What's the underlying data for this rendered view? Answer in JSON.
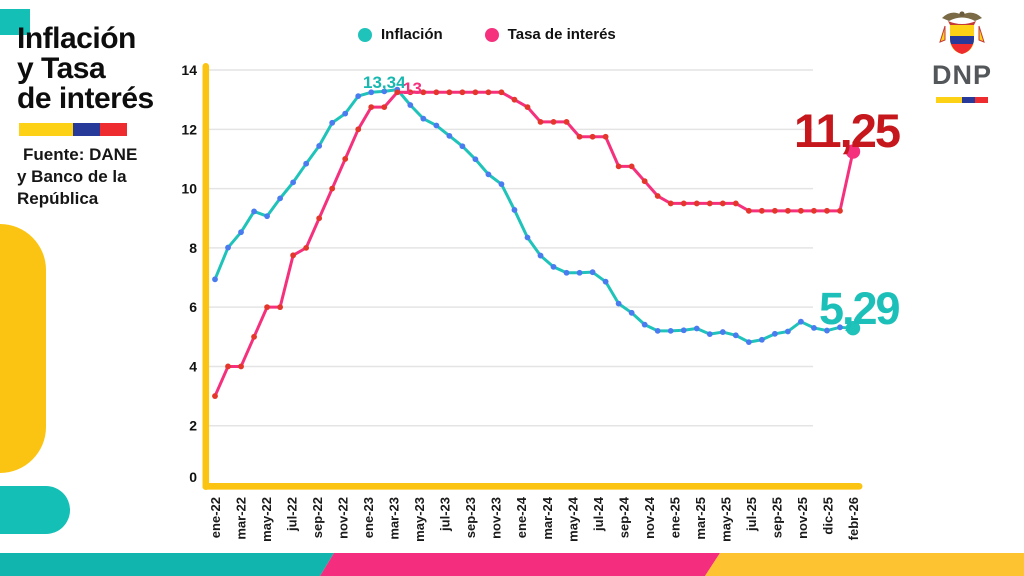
{
  "left_panel": {
    "title_lines": [
      "Inflación",
      "y Tasa",
      "de interés"
    ],
    "source_lines": [
      "Fuente: DANE",
      "y Banco de la",
      "República"
    ]
  },
  "legend": {
    "items": [
      {
        "label": "Inflación",
        "color": "#1fc3ba"
      },
      {
        "label": "Tasa de interés",
        "color": "#f5317e"
      }
    ]
  },
  "logo": {
    "text": "DNP"
  },
  "annotations": {
    "inflacion_peak": "13,34",
    "tasa_peak": "13",
    "tasa_last": "11,25",
    "inflacion_last": "5,29"
  },
  "colors": {
    "teal": "#1fc3ba",
    "pink": "#f5317e",
    "red_callout": "#c5171c",
    "axis_yellow": "#fcc412",
    "grid": "#e4e4e4",
    "tick_text": "#111111"
  },
  "chart_data": {
    "type": "line",
    "title": "Inflación y Tasa de interés",
    "xlabel": "",
    "ylabel": "",
    "ylim": [
      0,
      14
    ],
    "yticks": [
      0,
      2,
      4,
      6,
      8,
      10,
      12,
      14
    ],
    "grid": true,
    "legend_position": "top",
    "x_labels": [
      "ene-22",
      "mar-22",
      "may-22",
      "jul-22",
      "sep-22",
      "nov-22",
      "ene-23",
      "mar-23",
      "may-23",
      "jul-23",
      "sep-23",
      "nov-23",
      "ene-24",
      "mar-24",
      "may-24",
      "jul-24",
      "sep-24",
      "nov-24",
      "ene-25",
      "mar-25",
      "may-25",
      "jul-25",
      "sep-25",
      "nov-25",
      "dic-25",
      "febr-26"
    ],
    "x_start": "ene-22",
    "x_end": "febr-26",
    "frequency": "monthly",
    "series": [
      {
        "name": "Inflación",
        "color": "#1fc3ba",
        "point_color": "#4a7cf0",
        "last_value": 5.29,
        "values": [
          6.94,
          8.01,
          8.53,
          9.23,
          9.07,
          9.67,
          10.21,
          10.84,
          11.44,
          12.22,
          12.53,
          13.12,
          13.25,
          13.28,
          13.34,
          12.82,
          12.36,
          12.13,
          11.78,
          11.43,
          10.99,
          10.48,
          10.15,
          9.28,
          8.35,
          7.74,
          7.36,
          7.16,
          7.16,
          7.18,
          6.86,
          6.12,
          5.81,
          5.41,
          5.2,
          5.2,
          5.22,
          5.28,
          5.09,
          5.16,
          5.05,
          4.82,
          4.9,
          5.1,
          5.18,
          5.51,
          5.3,
          5.21,
          5.32,
          5.29
        ]
      },
      {
        "name": "Tasa de interés",
        "color": "#f5317e",
        "point_color": "#e4372c",
        "last_value": 11.25,
        "values": [
          3.0,
          4.0,
          4.0,
          5.0,
          6.0,
          6.0,
          7.75,
          8.0,
          9.0,
          10.0,
          11.0,
          12.0,
          12.75,
          12.75,
          13.25,
          13.25,
          13.25,
          13.25,
          13.25,
          13.25,
          13.25,
          13.25,
          13.25,
          13.0,
          12.75,
          12.25,
          12.25,
          12.25,
          11.75,
          11.75,
          11.75,
          10.75,
          10.75,
          10.25,
          9.75,
          9.5,
          9.5,
          9.5,
          9.5,
          9.5,
          9.5,
          9.25,
          9.25,
          9.25,
          9.25,
          9.25,
          9.25,
          9.25,
          9.25,
          11.25
        ]
      }
    ]
  }
}
